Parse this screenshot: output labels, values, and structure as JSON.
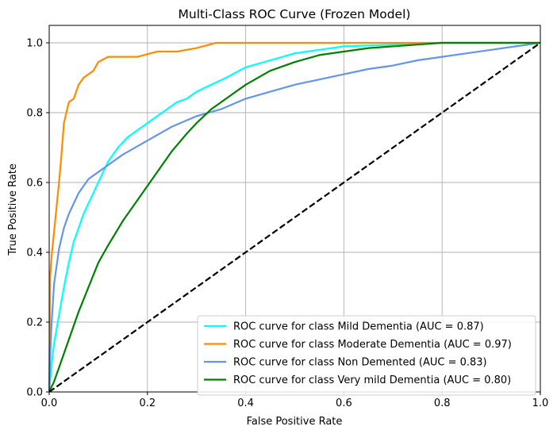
{
  "chart_data": {
    "type": "line",
    "title": "Multi-Class ROC Curve (Frozen Model)",
    "xlabel": "False Positive Rate",
    "ylabel": "True Positive Rate",
    "xlim": [
      0.0,
      1.0
    ],
    "ylim": [
      0.0,
      1.05
    ],
    "x_ticks": [
      "0.0",
      "0.2",
      "0.4",
      "0.6",
      "0.8",
      "1.0"
    ],
    "y_ticks": [
      "0.0",
      "0.2",
      "0.4",
      "0.6",
      "0.8",
      "1.0"
    ],
    "grid": true,
    "legend_position": "lower-right",
    "series": [
      {
        "name": "ROC curve for class Mild Dementia (AUC = 0.87)",
        "color": "#00FFFF",
        "x": [
          0.0,
          0.005,
          0.01,
          0.02,
          0.03,
          0.04,
          0.05,
          0.06,
          0.07,
          0.08,
          0.09,
          0.1,
          0.11,
          0.12,
          0.13,
          0.14,
          0.16,
          0.18,
          0.2,
          0.22,
          0.24,
          0.26,
          0.28,
          0.3,
          0.33,
          0.36,
          0.4,
          0.45,
          0.5,
          0.55,
          0.6,
          0.7,
          0.8,
          0.9,
          1.0
        ],
        "y": [
          0.0,
          0.08,
          0.14,
          0.22,
          0.3,
          0.37,
          0.43,
          0.47,
          0.51,
          0.54,
          0.57,
          0.6,
          0.63,
          0.66,
          0.68,
          0.7,
          0.73,
          0.75,
          0.77,
          0.79,
          0.81,
          0.83,
          0.84,
          0.86,
          0.88,
          0.9,
          0.93,
          0.95,
          0.97,
          0.98,
          0.99,
          0.995,
          1.0,
          1.0,
          1.0
        ]
      },
      {
        "name": "ROC curve for class Moderate Dementia (AUC = 0.97)",
        "color": "#FF8C00",
        "x": [
          0.0,
          0.002,
          0.005,
          0.01,
          0.015,
          0.02,
          0.025,
          0.03,
          0.035,
          0.04,
          0.05,
          0.06,
          0.07,
          0.08,
          0.09,
          0.1,
          0.12,
          0.14,
          0.18,
          0.22,
          0.26,
          0.3,
          0.34,
          0.4,
          0.5,
          0.6,
          0.8,
          1.0
        ],
        "y": [
          0.0,
          0.33,
          0.39,
          0.46,
          0.53,
          0.6,
          0.68,
          0.77,
          0.8,
          0.83,
          0.84,
          0.88,
          0.9,
          0.91,
          0.92,
          0.945,
          0.96,
          0.96,
          0.96,
          0.975,
          0.975,
          0.985,
          1.0,
          1.0,
          1.0,
          1.0,
          1.0,
          1.0
        ]
      },
      {
        "name": "ROC curve for class Non Demented (AUC = 0.83)",
        "color": "#6495ED",
        "x": [
          0.0,
          0.002,
          0.005,
          0.01,
          0.02,
          0.03,
          0.04,
          0.05,
          0.06,
          0.08,
          0.1,
          0.12,
          0.15,
          0.2,
          0.25,
          0.3,
          0.35,
          0.4,
          0.45,
          0.5,
          0.55,
          0.6,
          0.65,
          0.7,
          0.75,
          0.8,
          0.85,
          0.9,
          0.95,
          1.0
        ],
        "y": [
          0.0,
          0.1,
          0.2,
          0.31,
          0.41,
          0.47,
          0.51,
          0.54,
          0.57,
          0.61,
          0.63,
          0.65,
          0.68,
          0.72,
          0.76,
          0.79,
          0.81,
          0.84,
          0.86,
          0.88,
          0.895,
          0.91,
          0.925,
          0.935,
          0.95,
          0.96,
          0.97,
          0.98,
          0.99,
          1.0
        ]
      },
      {
        "name": "ROC curve for class Very mild Dementia (AUC = 0.80)",
        "color": "#008000",
        "x": [
          0.0,
          0.01,
          0.02,
          0.03,
          0.04,
          0.05,
          0.06,
          0.08,
          0.1,
          0.12,
          0.15,
          0.18,
          0.2,
          0.22,
          0.25,
          0.28,
          0.3,
          0.33,
          0.36,
          0.4,
          0.45,
          0.5,
          0.55,
          0.6,
          0.65,
          0.7,
          0.75,
          0.8,
          0.85,
          0.9,
          0.95,
          1.0
        ],
        "y": [
          0.0,
          0.03,
          0.07,
          0.11,
          0.15,
          0.19,
          0.23,
          0.3,
          0.37,
          0.42,
          0.49,
          0.55,
          0.59,
          0.63,
          0.69,
          0.74,
          0.77,
          0.81,
          0.84,
          0.88,
          0.92,
          0.945,
          0.965,
          0.975,
          0.985,
          0.99,
          0.995,
          1.0,
          1.0,
          1.0,
          1.0,
          1.0
        ]
      },
      {
        "name": "",
        "color": "#000000",
        "dashed": true,
        "x": [
          0.0,
          1.0
        ],
        "y": [
          0.0,
          1.0
        ]
      }
    ]
  }
}
